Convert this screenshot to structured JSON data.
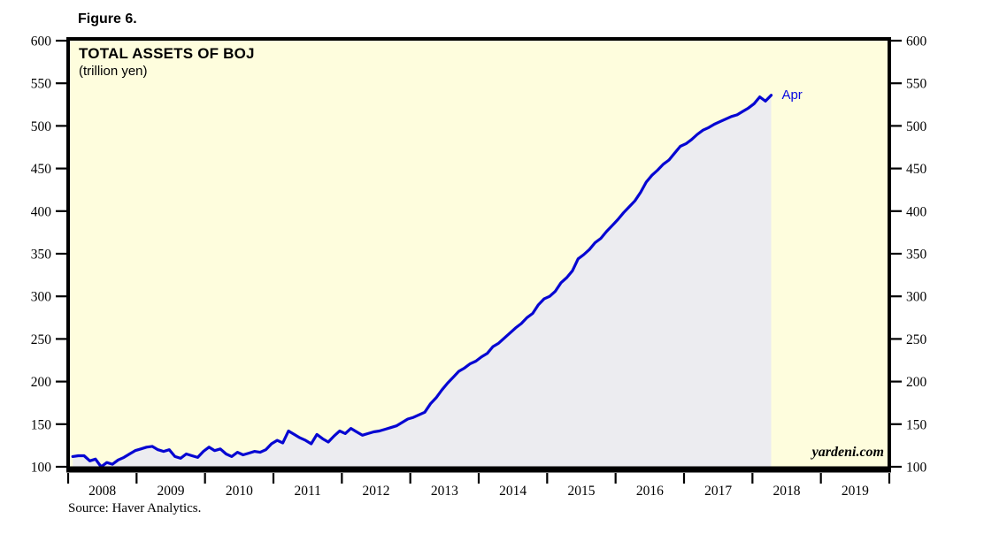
{
  "figure_label": "Figure 6.",
  "chart": {
    "title": "TOTAL ASSETS OF BOJ",
    "subtitle": "(trillion yen)",
    "watermark": "yardeni.com",
    "end_label": "Apr"
  },
  "source_note": "Source: Haver Analytics.",
  "colors": {
    "line": "#0606d2",
    "end_label": "#0909e0",
    "plot_background": "#fefddd",
    "area_fill": "#ececf0",
    "axis": "#000000"
  },
  "chart_data": {
    "type": "line",
    "title": "TOTAL ASSETS OF BOJ",
    "ylabel": "trillion yen",
    "ylim": [
      100,
      600
    ],
    "y_ticks": [
      100,
      150,
      200,
      250,
      300,
      350,
      400,
      450,
      500,
      550,
      600
    ],
    "y_tick_sides": "both",
    "x_years": [
      "2008",
      "2009",
      "2010",
      "2011",
      "2012",
      "2013",
      "2014",
      "2015",
      "2016",
      "2017",
      "2018",
      "2019"
    ],
    "grid": false,
    "legend_position": "none",
    "area_under_line": true,
    "last_point_label": "Apr",
    "series": [
      {
        "name": "Total assets of BOJ",
        "start": "2008-01",
        "end": "2018-04",
        "frequency": "monthly",
        "values": [
          112,
          113,
          113,
          107,
          109,
          100,
          105,
          103,
          108,
          111,
          115,
          119,
          121,
          123,
          124,
          120,
          118,
          120,
          112,
          110,
          115,
          113,
          111,
          118,
          123,
          119,
          121,
          115,
          112,
          117,
          114,
          116,
          118,
          117,
          120,
          127,
          131,
          128,
          142,
          138,
          134,
          131,
          127,
          138,
          133,
          129,
          136,
          142,
          139,
          145,
          141,
          137,
          139,
          141,
          142,
          144,
          146,
          148,
          152,
          156,
          158,
          161,
          164,
          174,
          181,
          190,
          198,
          205,
          212,
          216,
          221,
          224,
          229,
          233,
          241,
          245,
          251,
          257,
          263,
          268,
          275,
          280,
          290,
          297,
          300,
          306,
          316,
          322,
          330,
          344,
          349,
          355,
          363,
          368,
          376,
          383,
          390,
          398,
          405,
          412,
          422,
          434,
          442,
          448,
          455,
          460,
          468,
          476,
          479,
          484,
          490,
          495,
          498,
          502,
          505,
          508,
          511,
          513,
          517,
          521,
          526,
          534,
          529,
          536
        ]
      }
    ]
  }
}
